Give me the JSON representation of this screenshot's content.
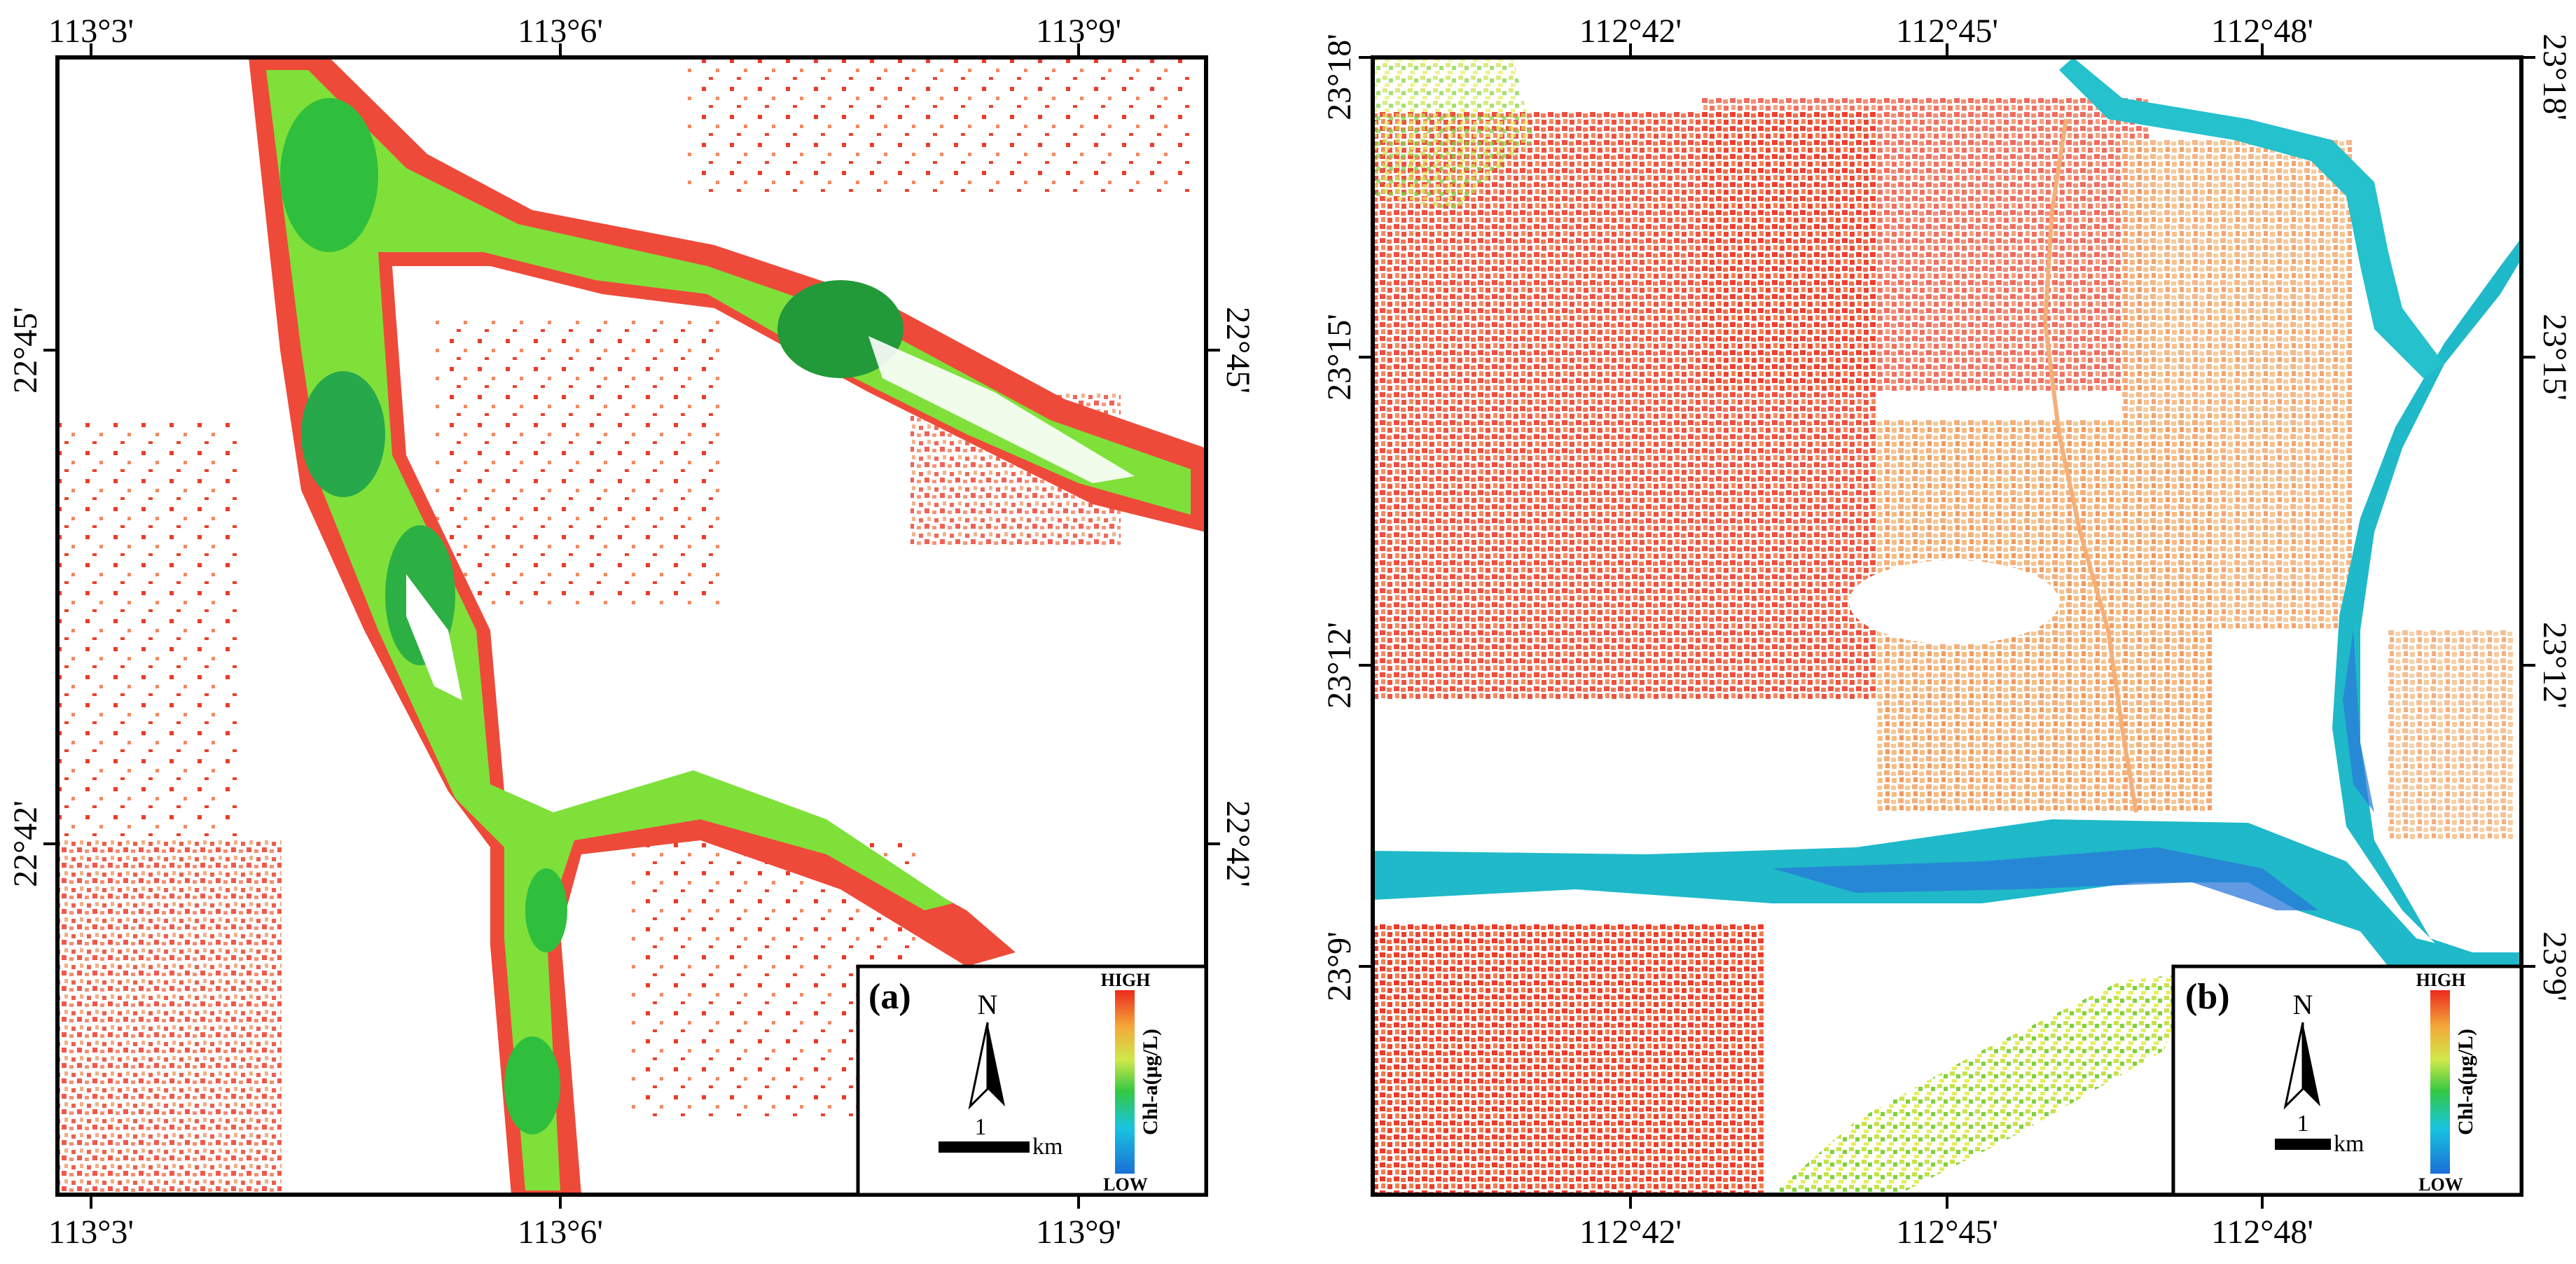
{
  "figure": {
    "panels": [
      {
        "id": "a",
        "label": "(a)",
        "top_ticks": [
          "113°3'",
          "113°6'",
          "113°9'"
        ],
        "bottom_ticks": [
          "113°3'",
          "113°6'",
          "113°9'"
        ],
        "left_ticks": [
          "22°45'",
          "22°42'"
        ],
        "right_ticks": [
          "22°45'",
          "22°42'"
        ],
        "legend": {
          "north": "N",
          "scale_value": "1",
          "scale_unit": "km",
          "high": "HIGH",
          "low": "LOW",
          "title": "Chl-a(μg/L)"
        }
      },
      {
        "id": "b",
        "label": "(b)",
        "top_ticks": [
          "112°42'",
          "112°45'",
          "112°48'"
        ],
        "bottom_ticks": [
          "112°42'",
          "112°45'",
          "112°48'"
        ],
        "left_ticks": [
          "23°18'",
          "23°15'",
          "23°12'",
          "23°9'"
        ],
        "right_ticks": [
          "23°18'",
          "23°15'",
          "23°12'",
          "23°9'"
        ],
        "legend": {
          "north": "N",
          "scale_value": "1",
          "scale_unit": "km",
          "high": "HIGH",
          "low": "LOW",
          "title": "Chl-a(μg/L)"
        }
      }
    ],
    "colors": {
      "ramp": [
        "#1b6fd6",
        "#18c4e0",
        "#34c842",
        "#cfe84a",
        "#f4a93a",
        "#ec2a1e"
      ],
      "frame": "#000000",
      "background": "#ffffff"
    }
  }
}
